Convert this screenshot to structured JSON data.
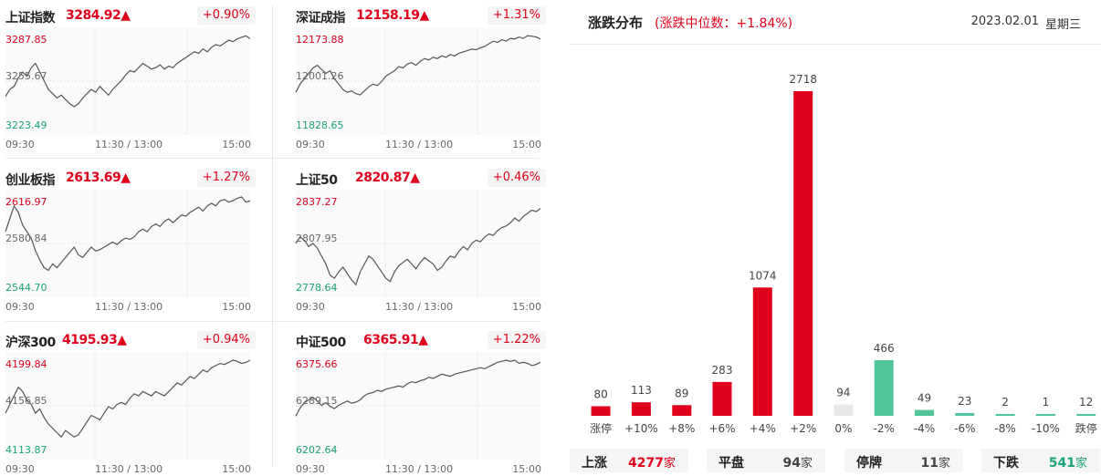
{
  "indices": [
    {
      "name": "上证指数",
      "price": "3284.92▲",
      "change": "+0.90%",
      "high": "3287.85",
      "mid": "3255.67",
      "low": "3223.49",
      "values": [
        3245,
        3250,
        3252,
        3258,
        3262,
        3259,
        3265,
        3268,
        3262,
        3256,
        3250,
        3247,
        3244,
        3246,
        3243,
        3240,
        3238,
        3240,
        3244,
        3247,
        3250,
        3248,
        3252,
        3249,
        3246,
        3250,
        3253,
        3256,
        3260,
        3263,
        3262,
        3265,
        3268,
        3266,
        3264,
        3265,
        3267,
        3264,
        3266,
        3265,
        3268,
        3270,
        3272,
        3274,
        3276,
        3275,
        3278,
        3276,
        3279,
        3281,
        3280,
        3282,
        3284,
        3283,
        3285,
        3286,
        3287,
        3285
      ]
    },
    {
      "name": "深证成指",
      "price": "12158.19▲",
      "change": "+1.31%",
      "high": "12173.88",
      "mid": "12001.26",
      "low": "11828.65",
      "values": [
        11960,
        11990,
        12010,
        12030,
        12050,
        12060,
        12045,
        12030,
        12040,
        12010,
        11990,
        11970,
        11960,
        11965,
        11955,
        11950,
        11965,
        11980,
        11990,
        11985,
        12000,
        12020,
        12030,
        12040,
        12055,
        12050,
        12065,
        12070,
        12060,
        12075,
        12085,
        12080,
        12090,
        12085,
        12095,
        12090,
        12100,
        12095,
        12105,
        12110,
        12115,
        12120,
        12118,
        12125,
        12130,
        12140,
        12150,
        12145,
        12155,
        12150,
        12160,
        12158,
        12165,
        12160,
        12170,
        12168,
        12165,
        12158
      ]
    },
    {
      "name": "创业板指",
      "price": "2613.69▲",
      "change": "+1.27%",
      "high": "2616.97",
      "mid": "2580.84",
      "low": "2544.70",
      "values": [
        2590,
        2600,
        2610,
        2605,
        2595,
        2590,
        2585,
        2575,
        2568,
        2562,
        2560,
        2565,
        2562,
        2566,
        2570,
        2574,
        2578,
        2572,
        2570,
        2574,
        2578,
        2575,
        2576,
        2578,
        2580,
        2582,
        2580,
        2583,
        2585,
        2584,
        2586,
        2590,
        2592,
        2590,
        2594,
        2596,
        2594,
        2598,
        2600,
        2597,
        2600,
        2603,
        2602,
        2605,
        2607,
        2609,
        2606,
        2610,
        2612,
        2610,
        2614,
        2615,
        2613,
        2614,
        2616,
        2617,
        2613,
        2614
      ]
    },
    {
      "name": "上证50",
      "price": "2820.87▲",
      "change": "+0.46%",
      "high": "2837.27",
      "mid": "2807.95",
      "low": "2778.64",
      "values": [
        2808,
        2812,
        2810,
        2806,
        2808,
        2805,
        2800,
        2795,
        2788,
        2786,
        2790,
        2793,
        2789,
        2785,
        2782,
        2790,
        2795,
        2800,
        2798,
        2794,
        2790,
        2786,
        2784,
        2790,
        2794,
        2796,
        2798,
        2795,
        2792,
        2796,
        2799,
        2797,
        2795,
        2791,
        2793,
        2797,
        2800,
        2799,
        2803,
        2806,
        2804,
        2808,
        2810,
        2809,
        2812,
        2814,
        2813,
        2816,
        2818,
        2819,
        2821,
        2824,
        2822,
        2825,
        2827,
        2829,
        2828,
        2830
      ]
    },
    {
      "name": "沪深300",
      "price": "4195.93▲",
      "change": "+0.94%",
      "high": "4199.84",
      "mid": "4156.85",
      "low": "4113.87",
      "values": [
        4150,
        4158,
        4166,
        4174,
        4170,
        4162,
        4158,
        4150,
        4154,
        4146,
        4140,
        4136,
        4132,
        4128,
        4134,
        4131,
        4128,
        4130,
        4136,
        4142,
        4148,
        4146,
        4144,
        4150,
        4156,
        4154,
        4158,
        4160,
        4158,
        4164,
        4168,
        4166,
        4170,
        4168,
        4166,
        4170,
        4168,
        4166,
        4170,
        4174,
        4178,
        4176,
        4180,
        4184,
        4182,
        4186,
        4190,
        4188,
        4192,
        4194,
        4196,
        4195,
        4197,
        4199,
        4198,
        4196,
        4197,
        4199
      ]
    },
    {
      "name": "中证500",
      "price": "6365.91▲",
      "change": "+1.22%",
      "high": "6375.66",
      "mid": "6289.15",
      "low": "6202.64",
      "values": [
        6270,
        6285,
        6295,
        6300,
        6305,
        6298,
        6290,
        6295,
        6288,
        6284,
        6290,
        6294,
        6298,
        6294,
        6296,
        6300,
        6308,
        6312,
        6314,
        6318,
        6316,
        6320,
        6322,
        6324,
        6326,
        6324,
        6330,
        6334,
        6332,
        6336,
        6338,
        6342,
        6340,
        6344,
        6348,
        6346,
        6344,
        6348,
        6350,
        6352,
        6354,
        6356,
        6358,
        6360,
        6358,
        6362,
        6366,
        6370,
        6372,
        6374,
        6372,
        6374,
        6368,
        6370,
        6368,
        6364,
        6366,
        6370
      ]
    }
  ],
  "time_labels": {
    "start": "09:30",
    "middle": "11:30 / 13:00",
    "end": "15:00"
  },
  "distribution": {
    "title": "涨跌分布",
    "subtitle": "(涨跌中位数：+1.84%)",
    "date": "2023.02.01",
    "weekday": "星期三"
  },
  "chart_data": {
    "type": "bar",
    "categories": [
      "涨停",
      "+10%",
      "+8%",
      "+6%",
      "+4%",
      "+2%",
      "0%",
      "-2%",
      "-4%",
      "-6%",
      "-8%",
      "-10%",
      "跌停"
    ],
    "values": [
      80,
      113,
      89,
      283,
      1074,
      2718,
      94,
      466,
      49,
      23,
      2,
      1,
      12
    ],
    "colors": [
      "#e0001b",
      "#e0001b",
      "#e0001b",
      "#e0001b",
      "#e0001b",
      "#e0001b",
      "#e8e8e8",
      "#52c49a",
      "#52c49a",
      "#52c49a",
      "#52c49a",
      "#52c49a",
      "#52c49a"
    ],
    "ylim": [
      0,
      2718
    ]
  },
  "summary": [
    {
      "label": "上涨",
      "value": "4277",
      "unit": "家",
      "color": "#e0001b"
    },
    {
      "label": "平盘",
      "value": "94",
      "unit": "家",
      "color": "#444444"
    },
    {
      "label": "停牌",
      "value": "11",
      "unit": "家",
      "color": "#444444"
    },
    {
      "label": "下跌",
      "value": "541",
      "unit": "家",
      "color": "#1aa37a"
    }
  ]
}
